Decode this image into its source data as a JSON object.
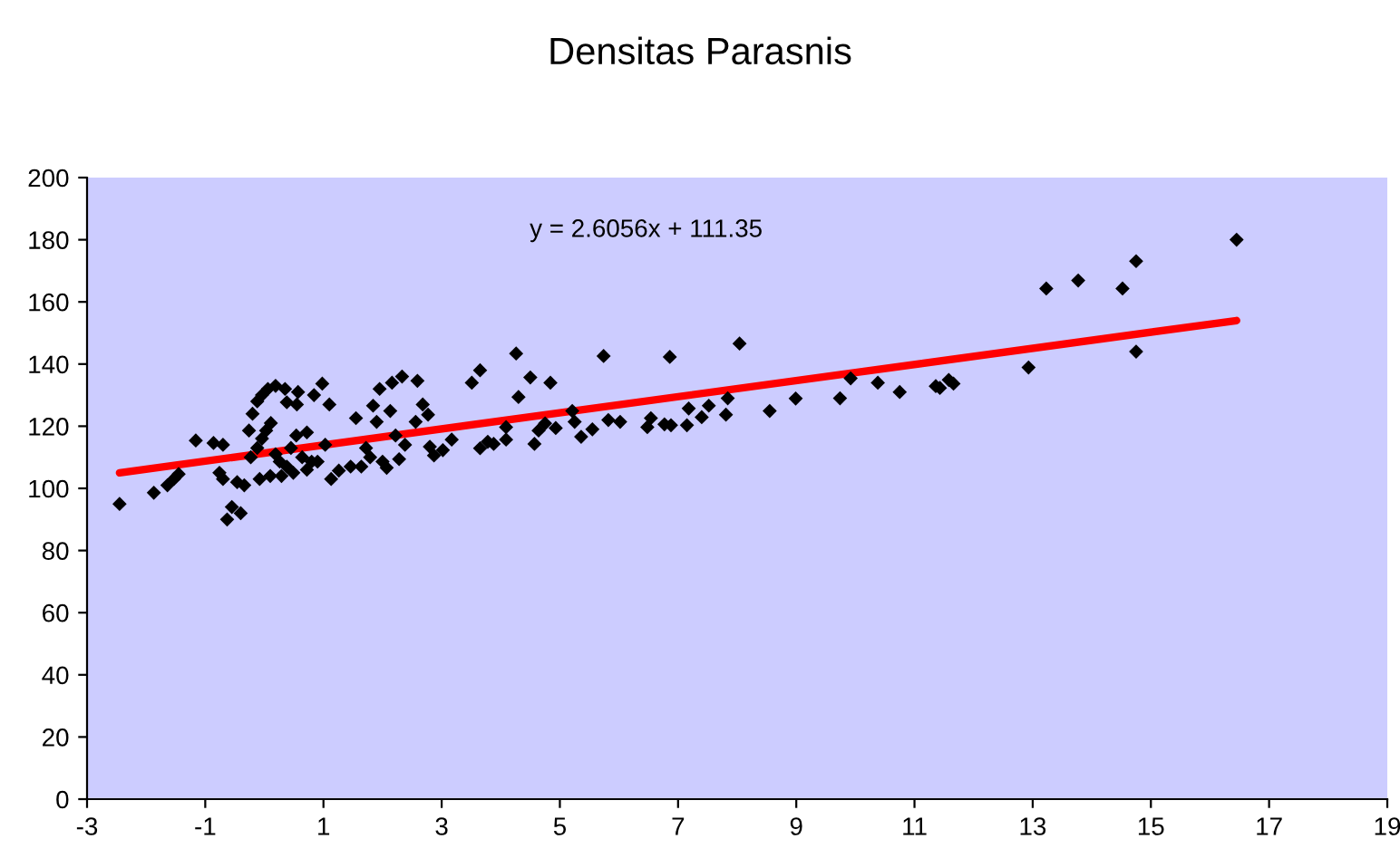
{
  "chart_data": {
    "type": "scatter",
    "title": "Densitas Parasnis",
    "annotations": [
      "y = 2.6056x + 111.35"
    ],
    "xlim": [
      -3,
      19
    ],
    "xticks": [
      -3,
      -1,
      1,
      3,
      5,
      7,
      9,
      11,
      13,
      15,
      17,
      19
    ],
    "ylim": [
      0,
      200
    ],
    "yticks": [
      0,
      20,
      40,
      60,
      80,
      100,
      120,
      140,
      160,
      180,
      200
    ],
    "grid": false,
    "legend": false,
    "marker": "diamond",
    "series": [
      {
        "color": "#000000",
        "x": [
          -2.45,
          -1.87,
          -1.64,
          -1.53,
          -1.45,
          -1.16,
          -0.86,
          -0.7,
          -0.76,
          -0.7,
          -0.63,
          -0.55,
          -0.4,
          -0.46,
          -0.34,
          -0.26,
          -0.2,
          -0.12,
          -0.04,
          0.06,
          0.19,
          0.35,
          0.57,
          -0.08,
          0.1,
          0.29,
          0.49,
          -0.23,
          -0.12,
          -0.04,
          0.03,
          0.11,
          0.19,
          0.26,
          0.38,
          0.45,
          0.54,
          0.64,
          0.72,
          0.8,
          0.72,
          0.38,
          0.55,
          0.84,
          0.98,
          1.1,
          0.9,
          1.03,
          1.13,
          1.26,
          1.46,
          1.55,
          1.64,
          1.72,
          1.79,
          1.84,
          1.9,
          1.95,
          2.0,
          2.07,
          2.13,
          2.16,
          2.22,
          2.28,
          2.33,
          2.38,
          2.56,
          2.59,
          2.68,
          2.77,
          2.8,
          2.87,
          3.02,
          3.17,
          3.51,
          3.65,
          3.65,
          3.78,
          3.88,
          4.09,
          4.09,
          4.26,
          4.3,
          4.5,
          4.57,
          4.64,
          4.75,
          4.84,
          4.93,
          5.21,
          5.25,
          5.36,
          5.55,
          5.74,
          5.82,
          6.02,
          6.48,
          6.54,
          6.77,
          6.86,
          6.88,
          7.15,
          7.18,
          7.4,
          7.52,
          7.81,
          7.84,
          8.04,
          8.55,
          8.99,
          9.74,
          9.92,
          10.38,
          10.75,
          11.36,
          11.43,
          11.58,
          11.66,
          12.93,
          13.23,
          13.77,
          14.52,
          14.75,
          14.75,
          16.45
        ],
        "values": [
          95,
          98.6,
          101,
          103,
          104.6,
          115.4,
          114.6,
          114,
          105,
          103,
          90,
          94,
          92,
          102,
          101,
          118.6,
          124,
          128,
          130,
          132,
          133,
          132,
          131,
          103,
          104,
          104,
          105,
          110,
          113,
          116,
          118.6,
          121,
          111,
          108.6,
          107,
          113,
          117,
          110,
          106,
          108.6,
          118,
          127.7,
          127,
          130,
          133.7,
          127,
          108.6,
          114,
          103,
          105.7,
          107,
          122.6,
          107,
          113,
          110,
          126.6,
          121.4,
          132,
          108.6,
          106.6,
          124.9,
          134,
          117,
          109.4,
          136,
          114,
          121.4,
          134.6,
          127,
          123.7,
          113.4,
          110.6,
          112.3,
          115.7,
          134,
          138,
          112.9,
          115,
          114.3,
          115.7,
          119.7,
          143.4,
          129.4,
          135.7,
          114.3,
          118.6,
          120.9,
          134,
          119.4,
          124.9,
          121.4,
          116.6,
          119,
          142.6,
          122,
          121.4,
          119.7,
          122.6,
          120.6,
          142.3,
          120.3,
          120.3,
          125.7,
          122.9,
          126.6,
          123.7,
          129,
          146.6,
          124.9,
          128.9,
          129,
          135.4,
          134,
          131,
          132.9,
          132.3,
          134.9,
          133.7,
          138.9,
          164.3,
          166.9,
          164.3,
          173.1,
          144,
          180
        ]
      },
      {
        "type": "line",
        "color": "#ff0000",
        "marker": "none",
        "x": [
          -2.45,
          16.45
        ],
        "values": [
          105,
          154
        ]
      }
    ]
  }
}
